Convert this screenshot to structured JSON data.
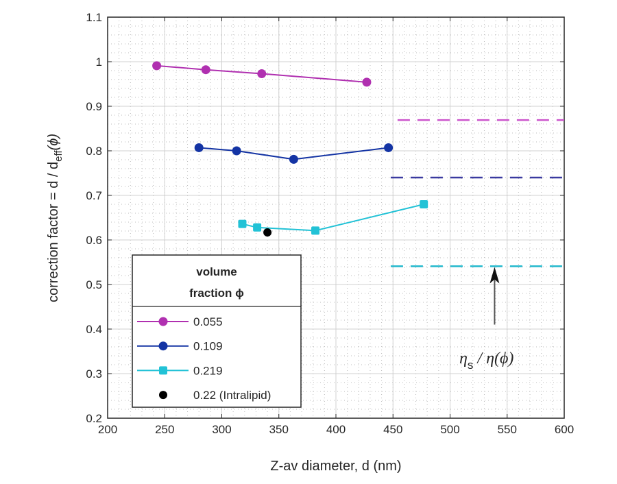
{
  "chart_data": {
    "type": "line",
    "xlabel": "Z-av diameter, d (nm)",
    "ylabel_main": "correction factor = d / d",
    "ylabel_sub": "eff",
    "ylabel_tail": "(ϕ)",
    "xlim": [
      200,
      600
    ],
    "ylim": [
      0.2,
      1.1
    ],
    "xticks": [
      "200",
      "250",
      "300",
      "350",
      "400",
      "450",
      "500",
      "550",
      "600"
    ],
    "yticks": [
      "0.2",
      "0.3",
      "0.4",
      "0.5",
      "0.6",
      "0.7",
      "0.8",
      "0.9",
      "1",
      "1.1"
    ],
    "grid": true,
    "minor_grid": true,
    "legend": {
      "title_line1": "volume",
      "title_line2": "fraction ϕ",
      "placement": "bottom-left"
    },
    "series": [
      {
        "name": "0.055",
        "color": "#b030b0",
        "marker": "circle",
        "x": [
          243,
          286,
          335,
          427
        ],
        "y": [
          0.991,
          0.982,
          0.973,
          0.954
        ]
      },
      {
        "name": "0.109",
        "color": "#1434a4",
        "marker": "circle",
        "x": [
          280,
          313,
          363,
          446
        ],
        "y": [
          0.807,
          0.8,
          0.781,
          0.807
        ]
      },
      {
        "name": "0.219",
        "color": "#22c2d6",
        "marker": "square",
        "x": [
          318,
          331,
          382,
          477
        ],
        "y": [
          0.636,
          0.628,
          0.621,
          0.68
        ]
      },
      {
        "name": "0.22 (Intralipid)",
        "color": "#000000",
        "marker": "circle",
        "x": [
          340
        ],
        "y": [
          0.617
        ]
      }
    ],
    "reference_lines": [
      {
        "color": "#cc55cc",
        "x": [
          454,
          600
        ],
        "y": 0.869
      },
      {
        "color": "#3a3aa0",
        "x": [
          448,
          600
        ],
        "y": 0.74
      },
      {
        "color": "#22b8cc",
        "x": [
          448,
          600
        ],
        "y": 0.541
      }
    ],
    "annotation": {
      "eta": "η",
      "sub": "s",
      "rest": " / η(ϕ)",
      "arrow_x": 539,
      "arrow_y": [
        0.41,
        0.53
      ]
    }
  }
}
